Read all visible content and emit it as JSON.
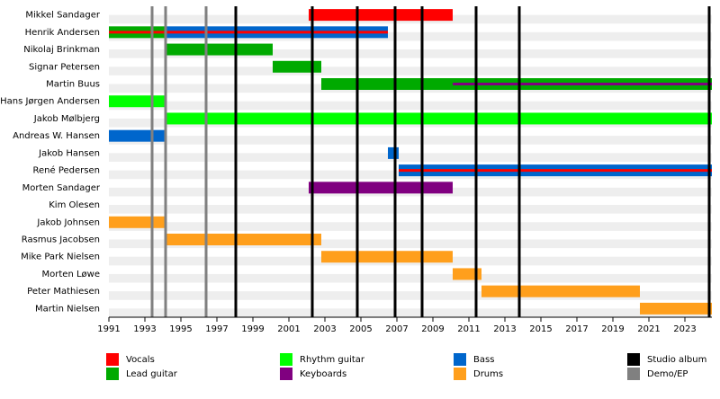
{
  "chart_data": {
    "type": "timeline",
    "xlim": [
      1991,
      2024.5
    ],
    "xticks": [
      1991,
      1993,
      1995,
      1997,
      1999,
      2001,
      2003,
      2005,
      2007,
      2009,
      2011,
      2013,
      2015,
      2017,
      2019,
      2021,
      2023
    ],
    "legend": [
      {
        "name": "Vocals",
        "color": "#ff0000"
      },
      {
        "name": "Lead guitar",
        "color": "#00aa00"
      },
      {
        "name": "Rhythm guitar",
        "color": "#00ff00"
      },
      {
        "name": "Keyboards",
        "color": "#800080"
      },
      {
        "name": "Bass",
        "color": "#0066cc"
      },
      {
        "name": "Drums",
        "color": "#ff9f1c"
      },
      {
        "name": "Studio album",
        "color": "#000000"
      },
      {
        "name": "Demo/EP",
        "color": "#808080"
      }
    ],
    "studio_albums": [
      1998.05,
      2002.3,
      2004.8,
      2006.9,
      2008.4,
      2011.4,
      2013.8,
      2024.35
    ],
    "demo_ep": [
      1993.4,
      1994.15,
      1996.4
    ],
    "rows": [
      {
        "name": "Mikkel Sandager",
        "spans": [
          {
            "role": "Vocals",
            "start": 2002.1,
            "end": 2010.1
          }
        ]
      },
      {
        "name": "Henrik Andersen",
        "spans": [
          {
            "role": "Lead guitar",
            "stripe": "Vocals",
            "start": 1991,
            "end": 1994.15
          },
          {
            "role": "Bass",
            "stripe": "Vocals",
            "start": 1994.15,
            "end": 2006.5
          }
        ]
      },
      {
        "name": "Nikolaj Brinkman",
        "spans": [
          {
            "role": "Lead guitar",
            "start": 1994.15,
            "end": 2000.1
          }
        ]
      },
      {
        "name": "Signar Petersen",
        "spans": [
          {
            "role": "Lead guitar",
            "start": 2000.1,
            "end": 2002.8
          }
        ]
      },
      {
        "name": "Martin Buus",
        "spans": [
          {
            "role": "Lead guitar",
            "start": 2002.8,
            "end": 2010.1
          },
          {
            "role": "Lead guitar",
            "stripe": "Keyboards",
            "start": 2010.1,
            "end": 2024.5
          }
        ]
      },
      {
        "name": "Hans Jørgen Andersen",
        "spans": [
          {
            "role": "Rhythm guitar",
            "start": 1991,
            "end": 1994.15
          }
        ]
      },
      {
        "name": "Jakob Mølbjerg",
        "spans": [
          {
            "role": "Rhythm guitar",
            "start": 1994.15,
            "end": 2024.5
          }
        ]
      },
      {
        "name": "Andreas W. Hansen",
        "spans": [
          {
            "role": "Bass",
            "start": 1991,
            "end": 1994.15
          }
        ]
      },
      {
        "name": "Jakob Hansen",
        "spans": [
          {
            "role": "Bass",
            "start": 2006.5,
            "end": 2007.1
          }
        ]
      },
      {
        "name": "René Pedersen",
        "spans": [
          {
            "role": "Bass",
            "stripe": "Vocals",
            "start": 2007.1,
            "end": 2024.5
          }
        ]
      },
      {
        "name": "Morten Sandager",
        "spans": [
          {
            "role": "Keyboards",
            "start": 2002.1,
            "end": 2010.1
          }
        ]
      },
      {
        "name": "Kim Olesen",
        "spans": []
      },
      {
        "name": "Jakob Johnsen",
        "spans": [
          {
            "role": "Drums",
            "start": 1991,
            "end": 1994.15
          }
        ]
      },
      {
        "name": "Rasmus Jacobsen",
        "spans": [
          {
            "role": "Drums",
            "start": 1994.15,
            "end": 2002.8
          }
        ]
      },
      {
        "name": "Mike Park Nielsen",
        "spans": [
          {
            "role": "Drums",
            "start": 2002.8,
            "end": 2010.1
          }
        ]
      },
      {
        "name": "Morten Løwe",
        "spans": [
          {
            "role": "Drums",
            "start": 2010.1,
            "end": 2011.7
          }
        ]
      },
      {
        "name": "Peter Mathiesen",
        "spans": [
          {
            "role": "Drums",
            "start": 2011.7,
            "end": 2020.5
          }
        ]
      },
      {
        "name": "Martin Nielsen",
        "spans": [
          {
            "role": "Drums",
            "start": 2020.5,
            "end": 2024.5
          }
        ]
      }
    ]
  }
}
